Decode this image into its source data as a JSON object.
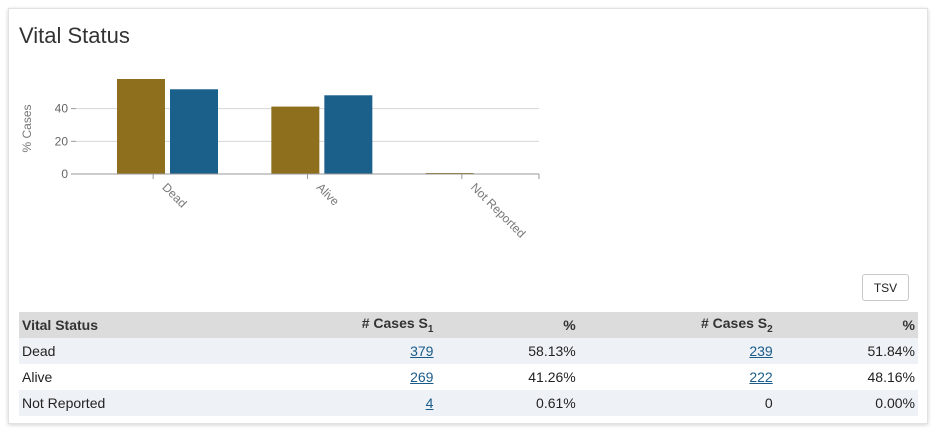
{
  "title": "Vital Status",
  "chart_data": {
    "type": "bar",
    "ylabel": "% Cases",
    "categories": [
      "Dead",
      "Alive",
      "Not Reported"
    ],
    "series": [
      {
        "values": [
          58.13,
          41.26,
          0.61
        ],
        "color": "#8e6f1e"
      },
      {
        "values": [
          51.84,
          48.16,
          0.0
        ],
        "color": "#1b5f8b"
      }
    ],
    "yticks": [
      0,
      20,
      40
    ],
    "ylim": [
      0,
      58.13
    ],
    "grid": true,
    "legend": "none"
  },
  "tsv_button": "TSV",
  "table": {
    "headers": {
      "vital_status": "Vital Status",
      "cases_s1": "# Cases S",
      "cases_s1_sub": "1",
      "pct1": "%",
      "cases_s2": "# Cases S",
      "cases_s2_sub": "2",
      "pct2": "%"
    },
    "rows": [
      {
        "label": "Dead",
        "s1": "379",
        "p1": "58.13%",
        "s2": "239",
        "p2": "51.84%"
      },
      {
        "label": "Alive",
        "s1": "269",
        "p1": "41.26%",
        "s2": "222",
        "p2": "48.16%"
      },
      {
        "label": "Not Reported",
        "s1": "4",
        "p1": "0.61%",
        "s2": "0",
        "p2": "0.00%"
      }
    ]
  }
}
